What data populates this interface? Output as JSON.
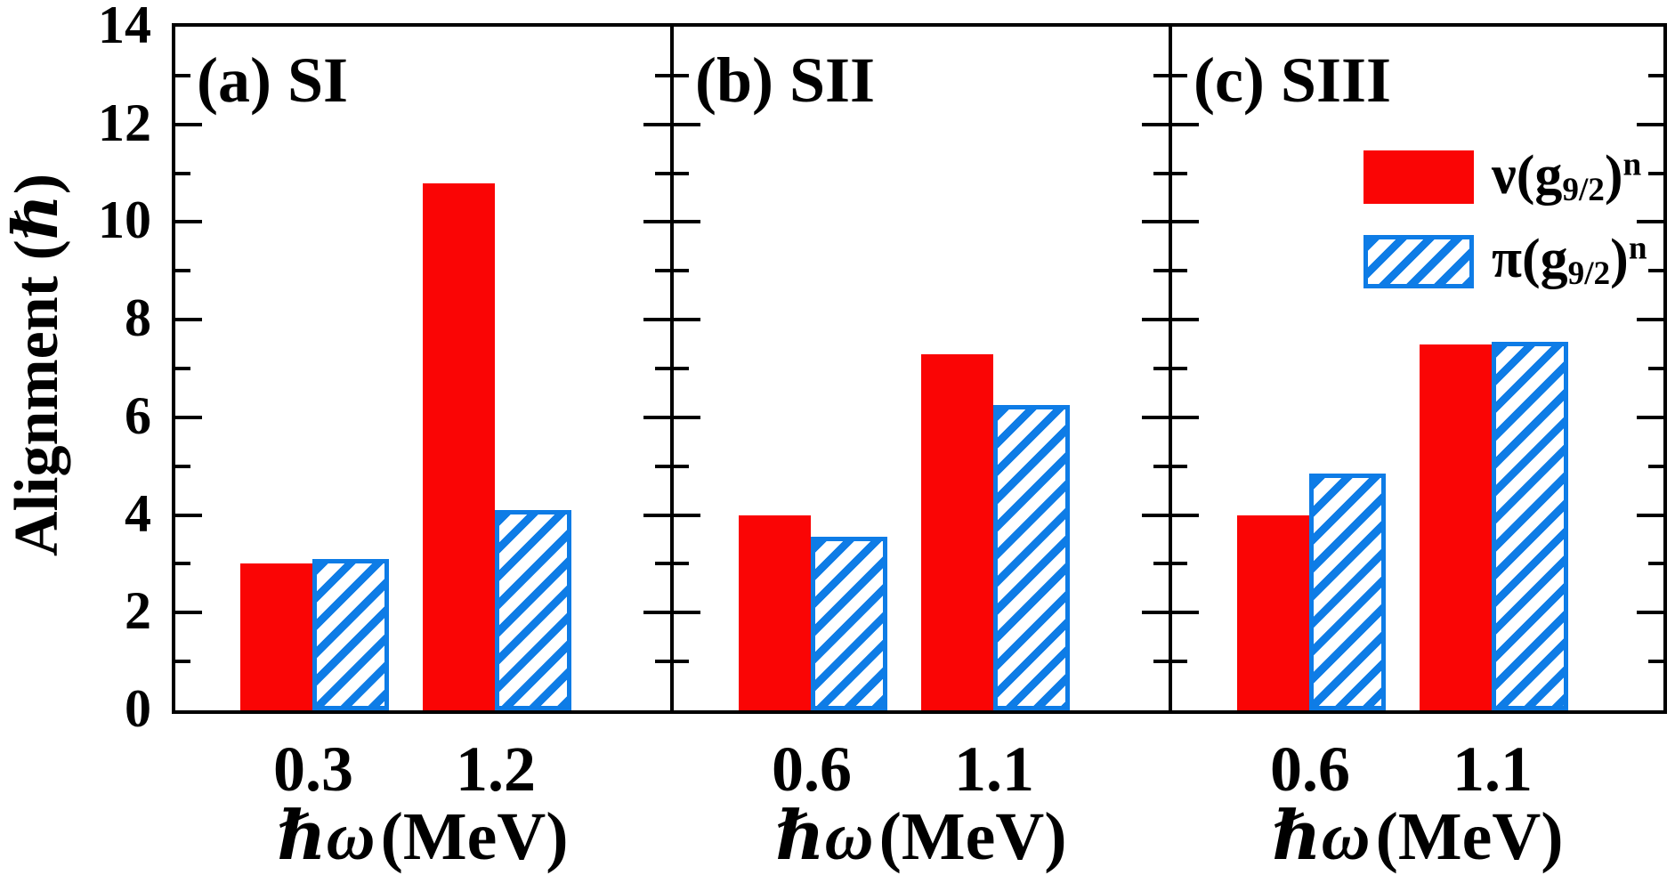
{
  "figure": {
    "background": "#ffffff",
    "ylabel": "Alignment (ℏ)",
    "y_axis": {
      "min": 0,
      "max": 14,
      "major_step": 2,
      "minor_step": 1,
      "tick_values": [
        14,
        12,
        10,
        8,
        6,
        4,
        2,
        0
      ],
      "tick_labels": [
        "14",
        "12",
        "10",
        "8",
        "6",
        "4",
        "2",
        "0"
      ]
    },
    "colors": {
      "neutron_fill": "#fa0505",
      "proton_hatch": "#0e7ce6",
      "axis": "#000000"
    },
    "legend": {
      "items": [
        {
          "id": "neutron",
          "sym": "ν",
          "base": "(g",
          "sub": "9/2",
          "close": ")",
          "sup": "n",
          "swatch": "solid red"
        },
        {
          "id": "proton",
          "sym": "π",
          "base": "(g",
          "sub": "9/2",
          "close": ")",
          "sup": "n",
          "swatch": "blue diagonal hatch"
        }
      ]
    }
  },
  "chart_data": [
    {
      "type": "bar",
      "panel_label": "(a) SI",
      "xlabel": "ℏω (MeV)",
      "xlabel_math": "ℏω",
      "xlabel_unit": "(MeV)",
      "ylabel": "Alignment (ℏ)",
      "ylim": [
        0,
        14
      ],
      "categories": [
        "0.3",
        "1.2"
      ],
      "series": [
        {
          "id": "neutron",
          "name": "ν(g9/2)n",
          "values": [
            3.0,
            10.8
          ]
        },
        {
          "id": "proton",
          "name": "π(g9/2)n",
          "values": [
            3.1,
            4.1
          ]
        }
      ]
    },
    {
      "type": "bar",
      "panel_label": "(b) SII",
      "xlabel": "ℏω (MeV)",
      "xlabel_math": "ℏω",
      "xlabel_unit": "(MeV)",
      "ylabel": "Alignment (ℏ)",
      "ylim": [
        0,
        14
      ],
      "categories": [
        "0.6",
        "1.1"
      ],
      "series": [
        {
          "id": "neutron",
          "name": "ν(g9/2)n",
          "values": [
            4.0,
            7.3
          ]
        },
        {
          "id": "proton",
          "name": "π(g9/2)n",
          "values": [
            3.55,
            6.25
          ]
        }
      ]
    },
    {
      "type": "bar",
      "panel_label": "(c) SIII",
      "xlabel": "ℏω (MeV)",
      "xlabel_math": "ℏω",
      "xlabel_unit": "(MeV)",
      "ylabel": "Alignment (ℏ)",
      "ylim": [
        0,
        14
      ],
      "categories": [
        "0.6",
        "1.1"
      ],
      "series": [
        {
          "id": "neutron",
          "name": "ν(g9/2)n",
          "values": [
            4.0,
            7.5
          ]
        },
        {
          "id": "proton",
          "name": "π(g9/2)n",
          "values": [
            4.85,
            7.55
          ]
        }
      ]
    }
  ]
}
